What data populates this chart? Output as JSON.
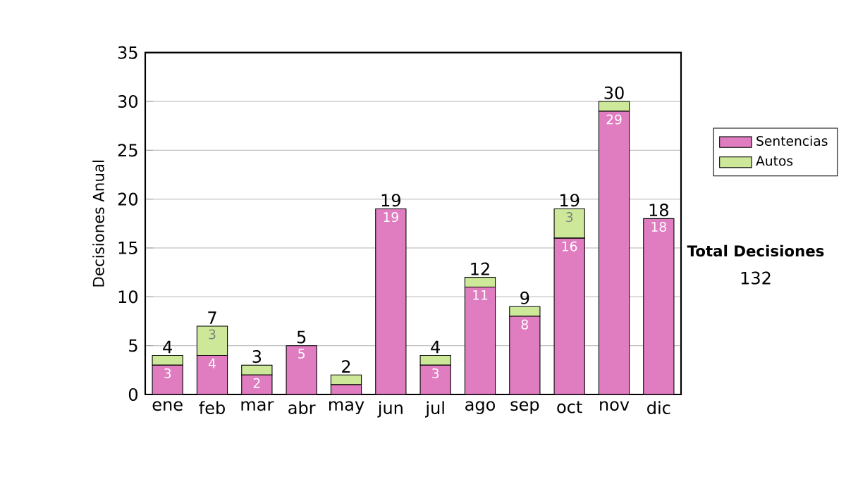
{
  "chart_data": {
    "type": "bar",
    "stacked": true,
    "ylabel": "Decisiones Anual",
    "categories": [
      "ene",
      "feb",
      "mar",
      "abr",
      "may",
      "jun",
      "jul",
      "ago",
      "sep",
      "oct",
      "nov",
      "dic"
    ],
    "series": [
      {
        "name": "Sentencias",
        "color": "#e07cc0",
        "values": [
          3,
          4,
          2,
          5,
          1,
          19,
          3,
          11,
          8,
          16,
          29,
          18
        ],
        "value_labels": [
          "3",
          "4",
          "2",
          "5",
          null,
          "19",
          "3",
          "11",
          "8",
          "16",
          "29",
          "18"
        ]
      },
      {
        "name": "Autos",
        "color": "#cce898",
        "values": [
          1,
          3,
          1,
          0,
          1,
          0,
          1,
          1,
          1,
          3,
          1,
          0
        ],
        "value_labels": [
          null,
          "3",
          null,
          null,
          null,
          null,
          null,
          null,
          null,
          "3",
          null,
          null
        ]
      }
    ],
    "totals": [
      "4",
      "7",
      "3",
      "5",
      "2",
      "19",
      "4",
      "12",
      "9",
      "19",
      "30",
      "18"
    ],
    "ylim": [
      0,
      35
    ],
    "yticks": [
      0,
      5,
      10,
      15,
      20,
      25,
      30,
      35
    ],
    "grid": "y",
    "legend": "right",
    "annotations": [
      "Total Decisiones",
      "132"
    ]
  }
}
